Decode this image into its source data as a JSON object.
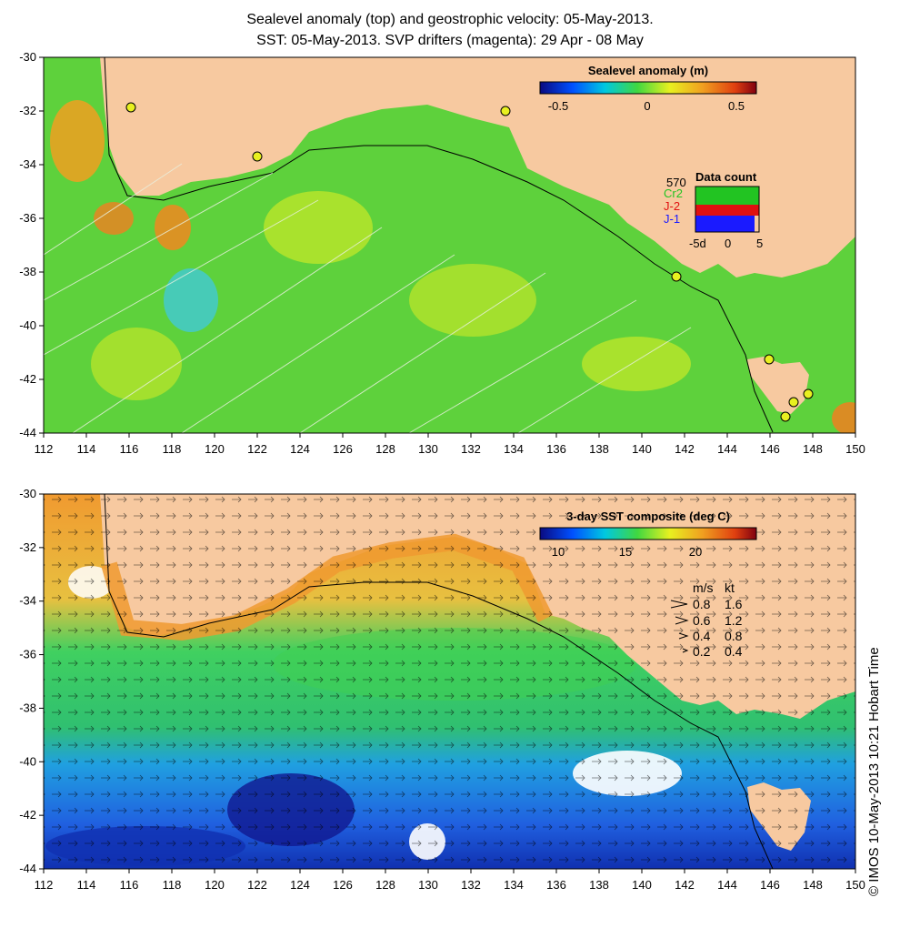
{
  "titles": {
    "line1": "Sealevel anomaly (top) and geostrophic velocity: 05-May-2013.",
    "line2": "SST: 05-May-2013. SVP drifters (magenta): 29 Apr - 08 May"
  },
  "axes": {
    "lat_ticks": [
      "-30",
      "-32",
      "-34",
      "-36",
      "-38",
      "-40",
      "-42",
      "-44"
    ],
    "lon_ticks": [
      "112",
      "114",
      "116",
      "118",
      "120",
      "122",
      "124",
      "126",
      "128",
      "130",
      "132",
      "134",
      "136",
      "138",
      "140",
      "142",
      "144",
      "146",
      "148",
      "150"
    ],
    "lon_range": [
      112,
      150
    ],
    "lat_range": [
      -30,
      -44
    ]
  },
  "top_panel": {
    "colorbar_title": "Sealevel anomaly (m)",
    "colorbar_ticks": [
      "-0.5",
      "0",
      "0.5"
    ],
    "data_count": {
      "title": "Data count",
      "max": "570",
      "series": [
        {
          "name": "Cr2",
          "color": "#22c422"
        },
        {
          "name": "J-2",
          "color": "#e01010"
        },
        {
          "name": "J-1",
          "color": "#1a1aff"
        }
      ],
      "x_ticks": [
        "-5d",
        "0",
        "5"
      ]
    }
  },
  "bottom_panel": {
    "colorbar_title": "3-day SST composite (deg C)",
    "colorbar_ticks": [
      "10",
      "15",
      "20"
    ],
    "velocity_legend": {
      "units": [
        "m/s",
        "kt"
      ],
      "rows": [
        {
          "ms": "0.8",
          "kt": "1.6"
        },
        {
          "ms": "0.6",
          "kt": "1.2"
        },
        {
          "ms": "0.4",
          "kt": "0.8"
        },
        {
          "ms": "0.2",
          "kt": "0.4"
        }
      ]
    }
  },
  "credit": "© IMOS 10-May-2013 10:21 Hobart Time",
  "colors": {
    "land": "#f7c9a0",
    "ocean_sla": "#5fd03a",
    "ocean_sst_warm": "#f0a030",
    "ocean_sst_mid": "#2ec84a",
    "ocean_sst_cold": "#2060e0"
  }
}
